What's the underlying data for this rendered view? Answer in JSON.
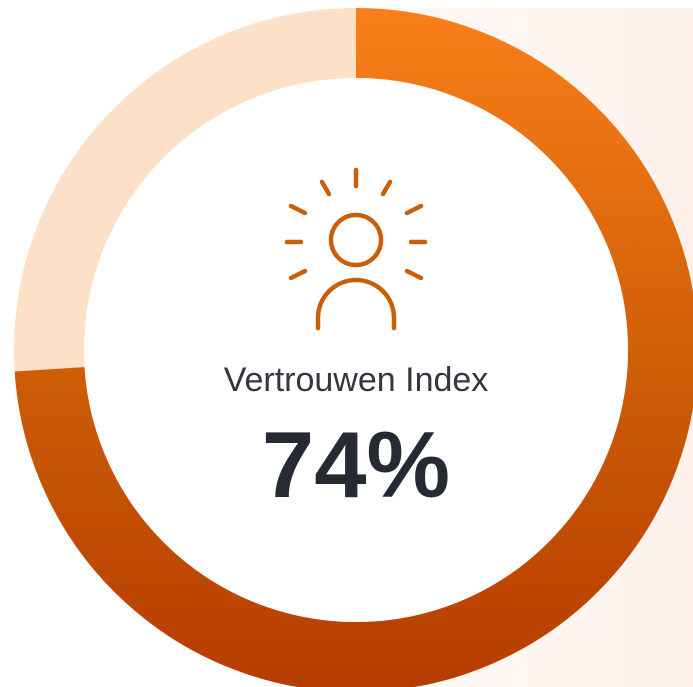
{
  "chart_data": {
    "type": "gauge",
    "title": "Vertrouwen Index",
    "values": [
      74
    ],
    "value_labels": [
      "74%"
    ],
    "ylim": [
      0,
      100
    ],
    "color": "#f07a18",
    "track_color": "#fde0c8"
  }
}
